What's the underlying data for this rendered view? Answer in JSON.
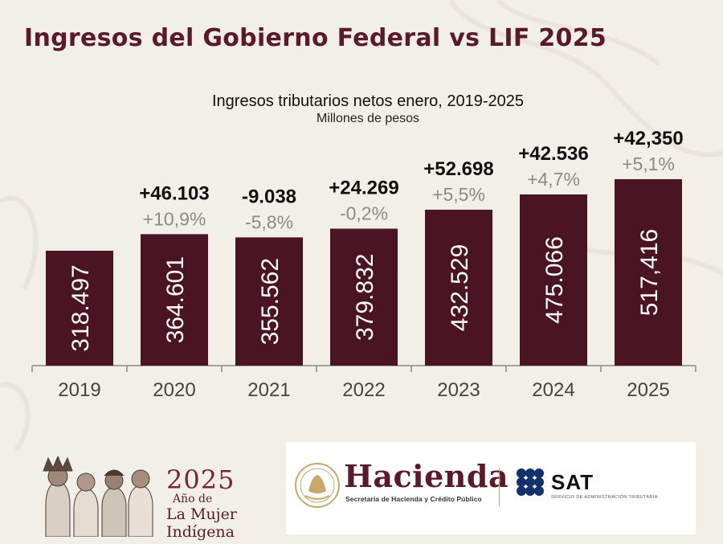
{
  "header": {
    "title": "Ingresos del Gobierno Federal vs LIF 2025"
  },
  "colors": {
    "bar": "#4a1424",
    "title": "#5a1a2c",
    "pct": "#8a8a8a",
    "sat_blue": "#12306b",
    "gold": "#c9a86b"
  },
  "chart_data": {
    "type": "bar",
    "title": "Ingresos tributarios netos enero, 2019-2025",
    "subtitle": "Millones de pesos",
    "categories": [
      "2019",
      "2020",
      "2021",
      "2022",
      "2023",
      "2024",
      "2025"
    ],
    "values": [
      318497,
      364601,
      355562,
      379832,
      432529,
      475066,
      517416
    ],
    "value_labels": [
      "318.497",
      "364.601",
      "355.562",
      "379.832",
      "432.529",
      "475.066",
      "517,416"
    ],
    "change_labels": [
      "",
      "+46.103",
      "-9.038",
      "+24.269",
      "+52.698",
      "+42.536",
      "+42,350"
    ],
    "pct_labels": [
      "",
      "+10,9%",
      "-5,8%",
      "-0,2%",
      "+5,5%",
      "+4,7%",
      "+5,1%"
    ],
    "grid": false,
    "legend": "none"
  },
  "footer": {
    "mujer": {
      "year": "2025",
      "line2": "Año de",
      "line3": "La Mujer",
      "line4": "Indígena"
    },
    "hacienda": {
      "name": "Hacienda",
      "subtitle": "Secretaría de Hacienda y Crédito Público"
    },
    "sat": {
      "name": "SAT",
      "subtitle": "SERVICIO DE ADMINISTRACIÓN TRIBUTARIA"
    },
    "icons": [
      "indigenous-women-illustration",
      "national-seal-icon",
      "sat-dots-logo"
    ]
  }
}
